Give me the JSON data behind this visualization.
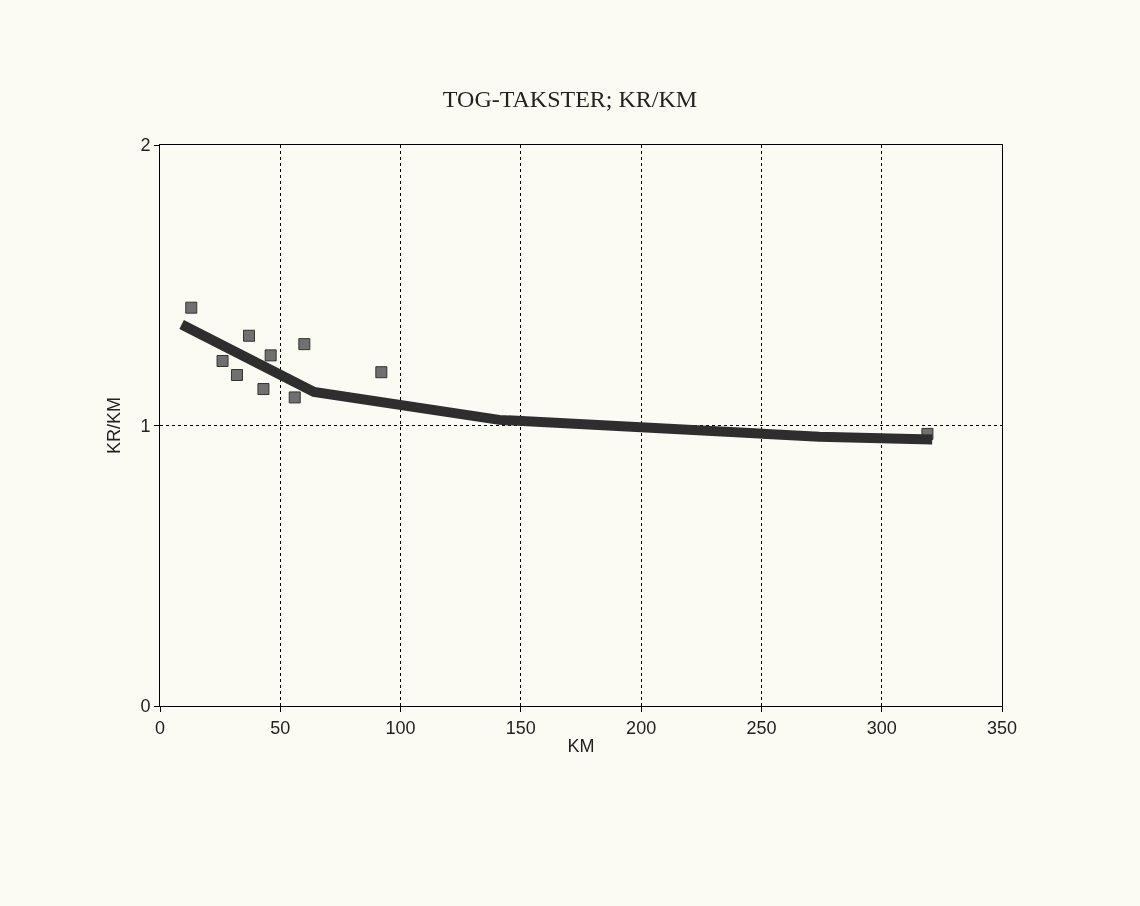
{
  "chart_data": {
    "type": "scatter",
    "title": "TOG-TAKSTER; KR/KM",
    "xlabel": "KM",
    "ylabel": "KR/KM",
    "xlim": [
      0,
      350
    ],
    "xticks": [
      0,
      50,
      100,
      150,
      200,
      250,
      300,
      350
    ],
    "ylim": [
      0,
      2
    ],
    "yticks": [
      0,
      1,
      2
    ],
    "grid": true,
    "marker": "square",
    "series": [
      {
        "color": "#707070",
        "x": [
          13,
          26,
          32,
          37,
          43,
          46,
          56,
          60,
          92,
          319
        ],
        "values": [
          1.42,
          1.23,
          1.18,
          1.32,
          1.13,
          1.25,
          1.1,
          1.29,
          1.19,
          0.97
        ]
      },
      {
        "type": "line",
        "marker": "none",
        "color": "#2e2e2e",
        "x": [
          9,
          64,
          141,
          274,
          321
        ],
        "values": [
          1.36,
          1.12,
          1.02,
          0.96,
          0.95
        ]
      }
    ]
  }
}
